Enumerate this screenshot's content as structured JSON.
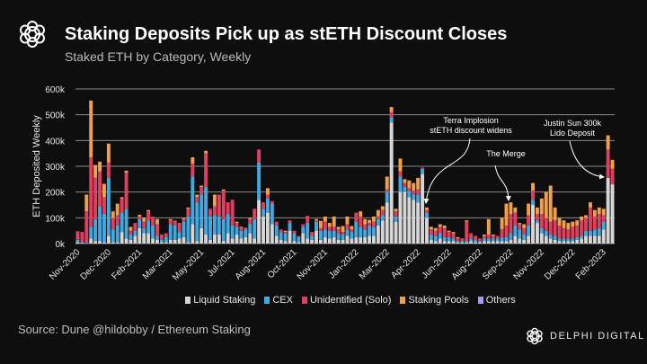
{
  "header": {
    "title": "Staking Deposits Pick up as stETH Discount Closes",
    "subtitle": "Staked ETH by Category, Weekly",
    "logo_icon": "delphi-flower-icon"
  },
  "footer": {
    "source": "Source: Dune @hildobby / Ethereum Staking",
    "brand": "DELPHI DIGITAL"
  },
  "colors": {
    "background": "#0e0e0f",
    "Liquid Staking": "#d6d6d6",
    "CEX": "#3fa9e0",
    "Unidentified (Solo)": "#e0405f",
    "Staking Pools": "#f0a04b",
    "Others": "#a99cf0"
  },
  "chart_data": {
    "type": "bar",
    "stacked": true,
    "ylabel": "ETH Deposited Weekly",
    "ylim": [
      0,
      600000
    ],
    "yticks": [
      "0k",
      "100k",
      "200k",
      "300k",
      "400k",
      "500k",
      "600k"
    ],
    "grid": true,
    "legend_position": "bottom",
    "xtick_labels": [
      "Nov-2020",
      "Dec-2020",
      "Feb-2021",
      "Mar-2021",
      "May-2021",
      "Jul-2021",
      "Aug-2021",
      "Oct-2021",
      "Nov-2021",
      "Jan-2022",
      "Mar-2022",
      "Apr-2022",
      "Jun-2022",
      "Aug-2022",
      "Sep-2022",
      "Nov-2022",
      "Dec-2022",
      "Feb-2023"
    ],
    "unit_note": "values in thousands of ETH",
    "series": [
      {
        "name": "Liquid Staking",
        "values": [
          5,
          3,
          0,
          20,
          10,
          10,
          5,
          30,
          5,
          5,
          45,
          20,
          15,
          30,
          60,
          40,
          40,
          20,
          15,
          5,
          5,
          15,
          15,
          20,
          25,
          5,
          75,
          10,
          60,
          35,
          15,
          35,
          35,
          10,
          40,
          20,
          35,
          20,
          25,
          40,
          20,
          170,
          105,
          120,
          75,
          30,
          15,
          10,
          50,
          10,
          5,
          40,
          20,
          15,
          50,
          15,
          25,
          20,
          25,
          15,
          15,
          30,
          20,
          25,
          25,
          25,
          30,
          30,
          70,
          90,
          160,
          470,
          85,
          200,
          200,
          180,
          170,
          160,
          270,
          100,
          15,
          10,
          20,
          10,
          10,
          10,
          5,
          5,
          5,
          10,
          5,
          5,
          10,
          10,
          10,
          10,
          10,
          10,
          15,
          30,
          20,
          15,
          30,
          150,
          80,
          40,
          30,
          20,
          15,
          10,
          10,
          10,
          10,
          15,
          20,
          30,
          30,
          30,
          30,
          55,
          255,
          230
        ]
      },
      {
        "name": "CEX",
        "values": [
          10,
          2,
          5,
          45,
          85,
          135,
          110,
          225,
          50,
          65,
          75,
          115,
          20,
          20,
          35,
          20,
          50,
          50,
          15,
          10,
          20,
          60,
          55,
          25,
          60,
          100,
          185,
          150,
          130,
          185,
          90,
          75,
          70,
          85,
          75,
          50,
          30,
          30,
          30,
          35,
          75,
          145,
          30,
          55,
          80,
          40,
          30,
          30,
          30,
          30,
          20,
          25,
          60,
          15,
          35,
          35,
          30,
          30,
          25,
          25,
          20,
          25,
          25,
          60,
          40,
          30,
          40,
          35,
          25,
          20,
          40,
          20,
          20,
          60,
          20,
          25,
          20,
          30,
          20,
          20,
          20,
          20,
          20,
          15,
          15,
          10,
          5,
          5,
          5,
          10,
          10,
          5,
          10,
          10,
          10,
          10,
          15,
          15,
          25,
          40,
          35,
          20,
          40,
          20,
          10,
          20,
          20,
          15,
          15,
          10,
          10,
          10,
          10,
          10,
          10,
          20,
          20,
          25,
          30,
          30,
          0,
          0
        ]
      },
      {
        "name": "Unidentified (Solo)",
        "values": [
          33,
          40,
          120,
          270,
          160,
          135,
          65,
          60,
          45,
          40,
          55,
          140,
          15,
          30,
          10,
          25,
          35,
          35,
          45,
          20,
          15,
          15,
          20,
          35,
          10,
          30,
          50,
          20,
          30,
          130,
          30,
          35,
          85,
          110,
          45,
          100,
          15,
          10,
          7,
          20,
          40,
          50,
          25,
          15,
          10,
          15,
          10,
          5,
          10,
          10,
          5,
          10,
          28,
          15,
          5,
          10,
          30,
          15,
          15,
          15,
          10,
          20,
          10,
          35,
          40,
          20,
          10,
          20,
          10,
          20,
          10,
          20,
          20,
          20,
          15,
          10,
          15,
          20,
          5,
          10,
          20,
          20,
          25,
          35,
          20,
          20,
          10,
          10,
          75,
          20,
          15,
          10,
          10,
          15,
          10,
          10,
          30,
          45,
          75,
          50,
          20,
          25,
          40,
          35,
          25,
          55,
          50,
          50,
          60,
          50,
          40,
          35,
          45,
          45,
          60,
          50,
          90,
          50,
          55,
          25,
          110,
          60
        ]
      },
      {
        "name": "Staking Pools",
        "values": [
          0,
          0,
          65,
          220,
          50,
          38,
          52,
          73,
          25,
          45,
          5,
          8,
          15,
          0,
          7,
          15,
          5,
          0,
          20,
          0,
          0,
          5,
          0,
          0,
          5,
          5,
          25,
          10,
          5,
          10,
          0,
          45,
          0,
          5,
          0,
          0,
          5,
          5,
          0,
          5,
          0,
          0,
          0,
          25,
          0,
          0,
          0,
          5,
          0,
          0,
          0,
          0,
          0,
          0,
          5,
          28,
          20,
          15,
          40,
          10,
          23,
          30,
          13,
          0,
          20,
          20,
          12,
          20,
          25,
          15,
          50,
          20,
          10,
          50,
          15,
          30,
          30,
          45,
          0,
          10,
          10,
          10,
          10,
          10,
          5,
          5,
          5,
          0,
          5,
          0,
          0,
          0,
          5,
          60,
          5,
          0,
          45,
          85,
          45,
          20,
          5,
          15,
          45,
          30,
          25,
          60,
          100,
          140,
          50,
          30,
          30,
          25,
          20,
          20,
          15,
          10,
          20,
          25,
          25,
          25,
          55,
          35
        ]
      },
      {
        "name": "Others",
        "values": []
      }
    ],
    "annotations": [
      {
        "text": [
          "Terra Implosion",
          "stETH  discount widens"
        ],
        "target": "Apr-2022"
      },
      {
        "text": [
          "The Merge"
        ],
        "target": "Sep-2022"
      },
      {
        "text": [
          "Justin Sun 300k",
          "Lido Deposit"
        ],
        "target": "Feb-2023"
      }
    ]
  }
}
